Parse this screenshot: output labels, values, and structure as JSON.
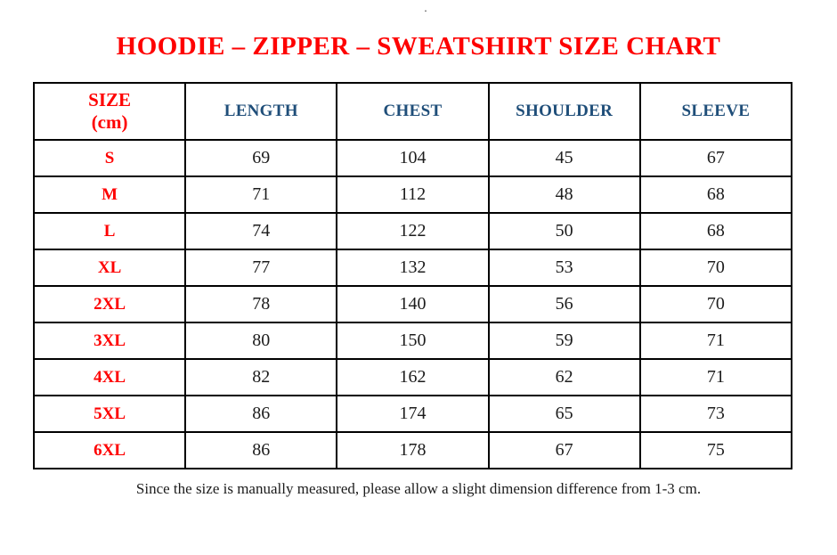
{
  "page": {
    "stray_dot": "."
  },
  "title": {
    "text": "HOODIE – ZIPPER – SWEATSHIRT SIZE CHART"
  },
  "table": {
    "header": {
      "size_label_line1": "SIZE",
      "size_label_line2": "(cm)",
      "columns": [
        "LENGTH",
        "CHEST",
        "SHOULDER",
        "SLEEVE"
      ]
    },
    "rows": [
      {
        "size": "S",
        "length": "69",
        "chest": "104",
        "shoulder": "45",
        "sleeve": "67"
      },
      {
        "size": "M",
        "length": "71",
        "chest": "112",
        "shoulder": "48",
        "sleeve": "68"
      },
      {
        "size": "L",
        "length": "74",
        "chest": "122",
        "shoulder": "50",
        "sleeve": "68"
      },
      {
        "size": "XL",
        "length": "77",
        "chest": "132",
        "shoulder": "53",
        "sleeve": "70"
      },
      {
        "size": "2XL",
        "length": "78",
        "chest": "140",
        "shoulder": "56",
        "sleeve": "70"
      },
      {
        "size": "3XL",
        "length": "80",
        "chest": "150",
        "shoulder": "59",
        "sleeve": "71"
      },
      {
        "size": "4XL",
        "length": "82",
        "chest": "162",
        "shoulder": "62",
        "sleeve": "71"
      },
      {
        "size": "5XL",
        "length": "86",
        "chest": "174",
        "shoulder": "65",
        "sleeve": "73"
      },
      {
        "size": "6XL",
        "length": "86",
        "chest": "178",
        "shoulder": "67",
        "sleeve": "75"
      }
    ]
  },
  "footer": {
    "note": "Since the size is manually measured, please allow a slight dimension difference from 1-3 cm."
  },
  "colors": {
    "accent_red": "#fe0000",
    "header_blue": "#1f4e79",
    "text_black": "#1c1c1c",
    "border_black": "#000000",
    "background": "#ffffff"
  }
}
